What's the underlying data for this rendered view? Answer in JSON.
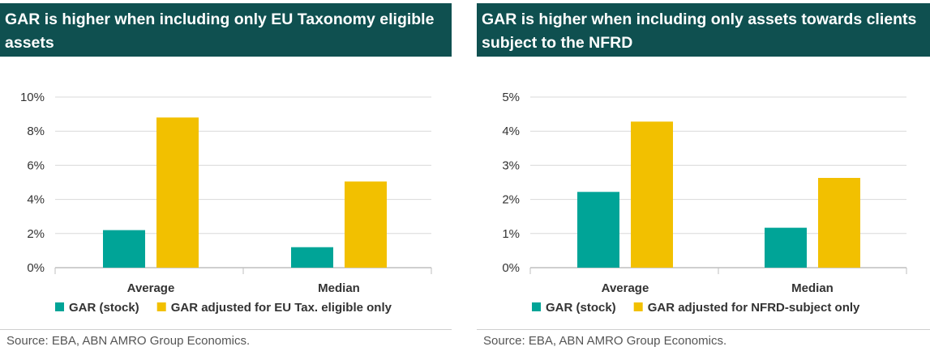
{
  "colors": {
    "header_bg": "#0f5050",
    "teal": "#00a497",
    "gold": "#f2c000",
    "grid": "#d9d9d9"
  },
  "chart_data": [
    {
      "type": "bar",
      "title": "GAR is higher when including only EU Taxonomy eligible assets",
      "categories": [
        "Average",
        "Median"
      ],
      "series": [
        {
          "name": "GAR (stock)",
          "values": [
            2.2,
            1.2
          ]
        },
        {
          "name": "GAR adjusted for EU Tax. eligible only",
          "values": [
            8.8,
            5.05
          ]
        }
      ],
      "ylim": [
        0,
        10
      ],
      "yticks": [
        "0%",
        "2%",
        "4%",
        "6%",
        "8%",
        "10%"
      ],
      "legend": "bottom-left",
      "grid": true,
      "source": "Source: EBA, ABN AMRO Group Economics."
    },
    {
      "type": "bar",
      "title": " GAR is higher when including only assets towards clients subject to the NFRD",
      "categories": [
        "Average",
        "Median"
      ],
      "series": [
        {
          "name": "GAR (stock)",
          "values": [
            2.22,
            1.17
          ]
        },
        {
          "name": "GAR adjusted for NFRD-subject only",
          "values": [
            4.28,
            2.63
          ]
        }
      ],
      "ylim": [
        0,
        5
      ],
      "yticks": [
        "0%",
        "1%",
        "2%",
        "3%",
        "4%",
        "5%"
      ],
      "legend": "bottom-left",
      "grid": true,
      "source": "Source: EBA, ABN AMRO Group Economics."
    }
  ]
}
